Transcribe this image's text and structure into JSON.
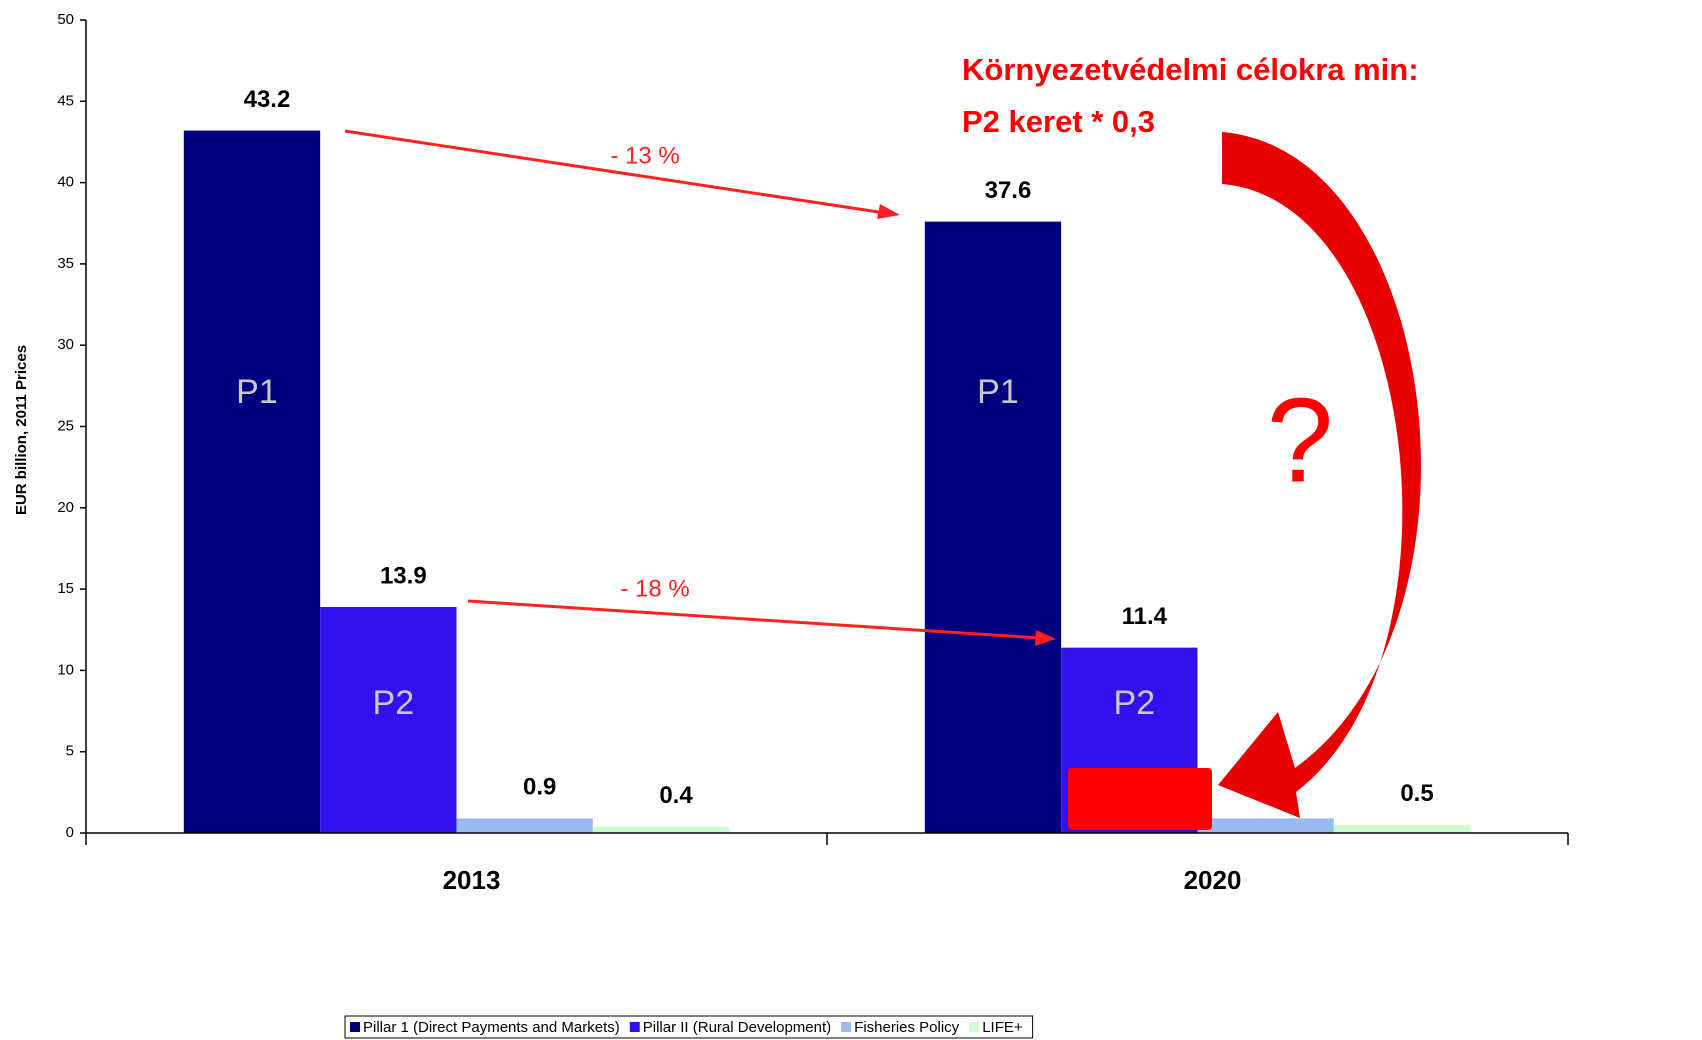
{
  "chart_data": {
    "type": "bar",
    "y_label": "EUR billion, 2011 Prices",
    "categories": [
      "2013",
      "2020"
    ],
    "series": [
      {
        "name": "Pillar 1 (Direct Payments and Markets)",
        "color": "#000080",
        "values": [
          43.2,
          37.6
        ],
        "inner_label": "P1"
      },
      {
        "name": "Pillar II (Rural Development)",
        "color": "#3311ee",
        "values": [
          13.9,
          11.4
        ],
        "inner_label": "P2"
      },
      {
        "name": "Fisheries Policy",
        "color": "#99bbee",
        "values": [
          0.9,
          0.9
        ]
      },
      {
        "name": "LIFE+",
        "color": "#ccffcc",
        "values": [
          0.4,
          0.5
        ]
      }
    ],
    "ylim": [
      0,
      50
    ],
    "yticks": [
      0,
      5,
      10,
      15,
      20,
      25,
      30,
      35,
      40,
      45,
      50
    ],
    "annotations": {
      "p1_change": "- 13 %",
      "p2_change": "- 18 %",
      "note_line1": "Környezetvédelmi célokra min:",
      "note_line2": "P2 keret * 0,3",
      "question": "?"
    }
  }
}
